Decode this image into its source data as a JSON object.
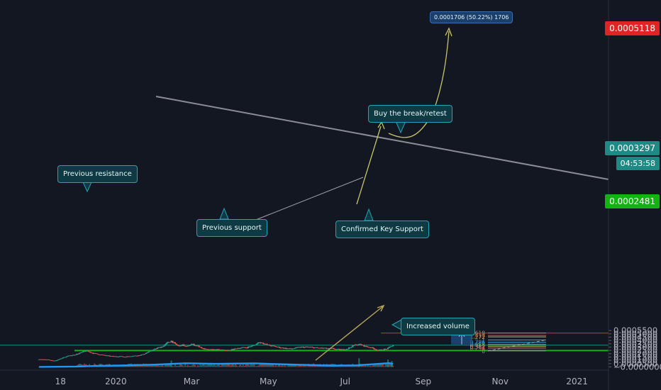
{
  "chart_data": {
    "type": "candlestick",
    "x_ticks": [
      "18",
      "2020",
      "Mar",
      "May",
      "Jul",
      "Sep",
      "Nov",
      "2021"
    ],
    "y_ticks": [
      "0.0005500",
      "0.0005000",
      "0.0004500",
      "0.0004000",
      "0.0003500",
      "0.0003000",
      "0.0002500",
      "0.0002000",
      "0.0001500",
      "0.0001000",
      "0.0000500",
      "−0.0000000"
    ],
    "ylim": [
      0,
      0.00055
    ],
    "price_tags": {
      "target": "0.0005118",
      "current": "0.0003297",
      "countdown": "04:53:58",
      "support": "0.0002481"
    },
    "price_path": [
      {
        "x": "2019-11-01",
        "y": 0.000113
      },
      {
        "x": "2019-11-05",
        "y": 0.000112
      },
      {
        "x": "2019-11-09",
        "y": 0.000106
      },
      {
        "x": "2019-11-12",
        "y": 9.2e-05
      },
      {
        "x": "2019-11-15",
        "y": 0.0001
      },
      {
        "x": "2019-11-18",
        "y": 0.000125
      },
      {
        "x": "2019-11-21",
        "y": 0.000147
      },
      {
        "x": "2019-11-25",
        "y": 0.000168
      },
      {
        "x": "2019-11-29",
        "y": 0.000183
      },
      {
        "x": "2019-12-02",
        "y": 0.0002
      },
      {
        "x": "2019-12-05",
        "y": 0.000221
      },
      {
        "x": "2019-12-08",
        "y": 0.000243
      },
      {
        "x": "2019-12-10",
        "y": 0.000232
      },
      {
        "x": "2019-12-14",
        "y": 0.000206
      },
      {
        "x": "2019-12-18",
        "y": 0.000192
      },
      {
        "x": "2019-12-22",
        "y": 0.000177
      },
      {
        "x": "2019-12-26",
        "y": 0.000166
      },
      {
        "x": "2019-12-30",
        "y": 0.000158
      },
      {
        "x": "2020-01-04",
        "y": 0.00016
      },
      {
        "x": "2020-01-08",
        "y": 0.000153
      },
      {
        "x": "2020-01-13",
        "y": 0.000164
      },
      {
        "x": "2020-01-18",
        "y": 0.000171
      },
      {
        "x": "2020-01-22",
        "y": 0.000185
      },
      {
        "x": "2020-01-26",
        "y": 0.000219
      },
      {
        "x": "2020-01-30",
        "y": 0.000254
      },
      {
        "x": "2020-02-04",
        "y": 0.000292
      },
      {
        "x": "2020-02-08",
        "y": 0.000318
      },
      {
        "x": "2020-02-11",
        "y": 0.000368
      },
      {
        "x": "2020-02-14",
        "y": 0.000392
      },
      {
        "x": "2020-02-17",
        "y": 0.000344
      },
      {
        "x": "2020-02-20",
        "y": 0.000313
      },
      {
        "x": "2020-02-23",
        "y": 0.000332
      },
      {
        "x": "2020-02-26",
        "y": 0.000304
      },
      {
        "x": "2020-03-01",
        "y": 0.000344
      },
      {
        "x": "2020-03-04",
        "y": 0.000327
      },
      {
        "x": "2020-03-07",
        "y": 0.00031
      },
      {
        "x": "2020-03-10",
        "y": 0.000277
      },
      {
        "x": "2020-03-14",
        "y": 0.000257
      },
      {
        "x": "2020-03-18",
        "y": 0.000262
      },
      {
        "x": "2020-03-23",
        "y": 0.000258
      },
      {
        "x": "2020-03-27",
        "y": 0.000252
      },
      {
        "x": "2020-03-31",
        "y": 0.000251
      },
      {
        "x": "2020-04-03",
        "y": 0.000266
      },
      {
        "x": "2020-04-07",
        "y": 0.000284
      },
      {
        "x": "2020-04-11",
        "y": 0.00029
      },
      {
        "x": "2020-04-14",
        "y": 0.000294
      },
      {
        "x": "2020-04-17",
        "y": 0.000313
      },
      {
        "x": "2020-04-20",
        "y": 0.000329
      },
      {
        "x": "2020-04-23",
        "y": 0.000367
      },
      {
        "x": "2020-04-26",
        "y": 0.000368
      },
      {
        "x": "2020-04-29",
        "y": 0.000339
      },
      {
        "x": "2020-05-03",
        "y": 0.000319
      },
      {
        "x": "2020-05-07",
        "y": 0.000306
      },
      {
        "x": "2020-05-11",
        "y": 0.000291
      },
      {
        "x": "2020-05-15",
        "y": 0.000279
      },
      {
        "x": "2020-05-19",
        "y": 0.000272
      },
      {
        "x": "2020-05-23",
        "y": 0.000288
      },
      {
        "x": "2020-05-27",
        "y": 0.000299
      },
      {
        "x": "2020-06-01",
        "y": 0.0003
      },
      {
        "x": "2020-06-05",
        "y": 0.000294
      },
      {
        "x": "2020-06-09",
        "y": 0.000286
      },
      {
        "x": "2020-06-13",
        "y": 0.000284
      },
      {
        "x": "2020-06-17",
        "y": 0.000277
      },
      {
        "x": "2020-06-21",
        "y": 0.000276
      },
      {
        "x": "2020-06-25",
        "y": 0.000264
      },
      {
        "x": "2020-06-29",
        "y": 0.000262
      },
      {
        "x": "2020-07-03",
        "y": 0.000278
      },
      {
        "x": "2020-07-07",
        "y": 0.000318
      },
      {
        "x": "2020-07-10",
        "y": 0.000338
      },
      {
        "x": "2020-07-13",
        "y": 0.000337
      },
      {
        "x": "2020-07-17",
        "y": 0.000311
      },
      {
        "x": "2020-07-21",
        "y": 0.000294
      },
      {
        "x": "2020-07-24",
        "y": 0.000275
      },
      {
        "x": "2020-07-27",
        "y": 0.000251
      },
      {
        "x": "2020-07-30",
        "y": 0.00026
      },
      {
        "x": "2020-08-02",
        "y": 0.000269
      },
      {
        "x": "2020-08-04",
        "y": 0.000281
      },
      {
        "x": "2020-08-06",
        "y": 0.000307
      },
      {
        "x": "2020-08-08",
        "y": 0.00033
      }
    ],
    "volume_ma": [
      {
        "x": "2019-11-01",
        "y": 1e-06
      },
      {
        "x": "2019-12-01",
        "y": 6e-06
      },
      {
        "x": "2019-12-15",
        "y": 1.5e-05
      },
      {
        "x": "2020-01-10",
        "y": 2.4e-05
      },
      {
        "x": "2020-02-01",
        "y": 3.5e-05
      },
      {
        "x": "2020-02-25",
        "y": 5.5e-05
      },
      {
        "x": "2020-03-20",
        "y": 4.8e-05
      },
      {
        "x": "2020-04-20",
        "y": 5.4e-05
      },
      {
        "x": "2020-05-20",
        "y": 3.6e-05
      },
      {
        "x": "2020-06-20",
        "y": 2e-05
      },
      {
        "x": "2020-07-10",
        "y": 2.5e-05
      },
      {
        "x": "2020-07-28",
        "y": 4.7e-05
      },
      {
        "x": "2020-08-05",
        "y": 5.8e-05
      },
      {
        "x": "2020-08-08",
        "y": 4.6e-05
      }
    ],
    "volume_bars_high": [
      {
        "x": "2020-02-14",
        "y": 9.6e-05
      },
      {
        "x": "2020-07-12",
        "y": 0.000131
      },
      {
        "x": "2020-08-04",
        "y": 0.000111
      },
      {
        "x": "2020-08-07",
        "y": 9e-05
      }
    ],
    "fib_levels": [
      {
        "label": "1.618",
        "y": 0.000512
      },
      {
        "label": "1.414",
        "y": 0.000475
      },
      {
        "label": "1.272",
        "y": 0.000453
      },
      {
        "label": "1",
        "y": 0.000408
      },
      {
        "label": "0.786",
        "y": 0.000373
      },
      {
        "label": "0.618",
        "y": 0.000344
      },
      {
        "label": "0.5",
        "y": 0.000325
      },
      {
        "label": "0.382",
        "y": 0.000306
      },
      {
        "label": "0.236",
        "y": 0.000282
      },
      {
        "label": "0",
        "y": 0.000243
      }
    ],
    "measure_label": "0.0001706 (50.22%) 1706",
    "annotations": {
      "previous_resistance": "Previous resistance",
      "previous_support": "Previous support",
      "buy_break_retest": "Buy the break/retest",
      "confirmed_key_support": "Confirmed Key Support",
      "increased_volume": "Increased volume"
    }
  },
  "colors": {
    "background": "#131722",
    "bull": "#26a69a",
    "bear": "#ef5350",
    "support_line": "#12b312",
    "target_line": "#e02424",
    "trendline": "#8a8d96",
    "volume_ma": "#2196f3",
    "annotation_fill": "#0e3b43",
    "annotation_border": "#22a4b8",
    "arrow_projection": "#c9c46a"
  }
}
